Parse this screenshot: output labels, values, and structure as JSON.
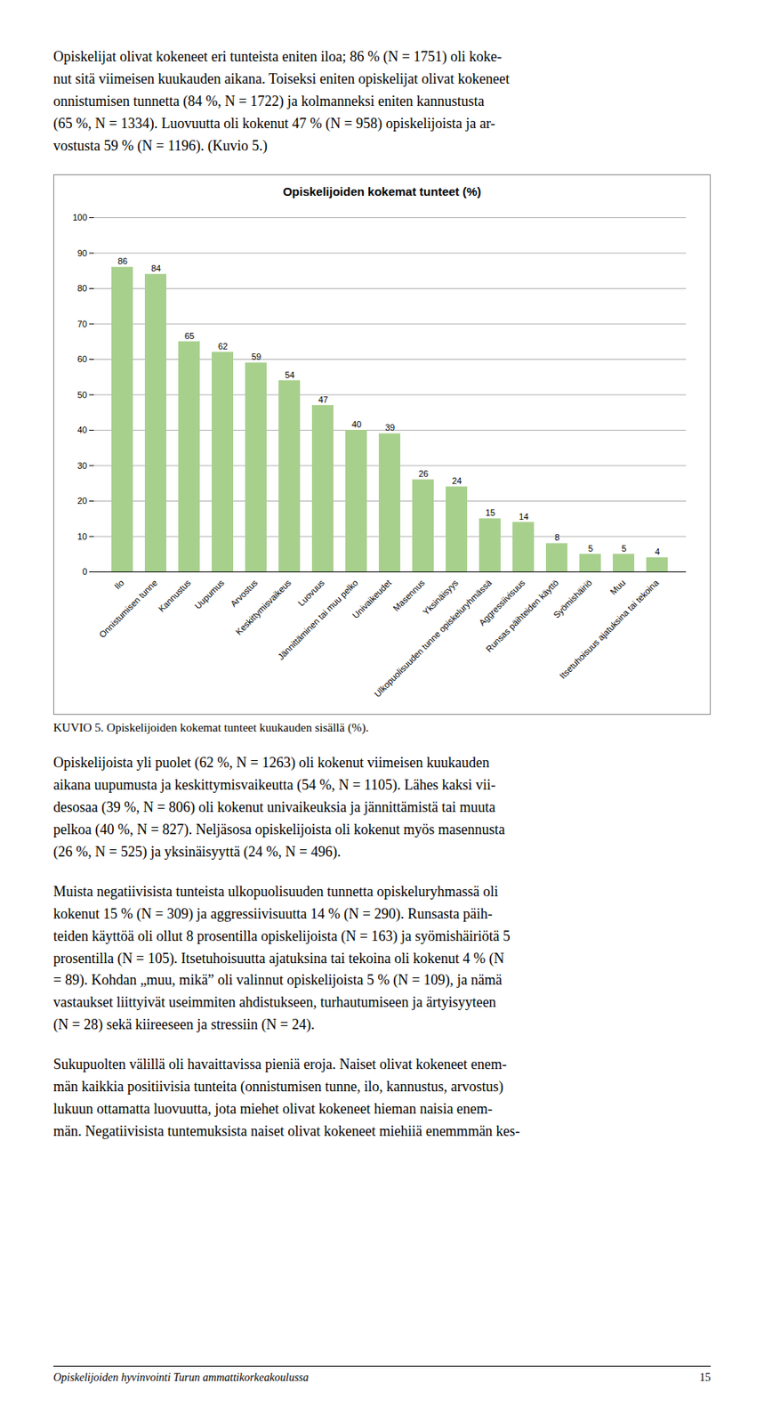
{
  "chart_data": {
    "type": "bar",
    "title": "Opiskelijoiden kokemat tunteet (%)",
    "categories": [
      "Ilo",
      "Onnistumisen tunne",
      "Kannustus",
      "Uupumus",
      "Arvostus",
      "Keskittymisvaikeus",
      "Luovuus",
      "Jännittäminen tai muu pelko",
      "Univaikeudet",
      "Masennus",
      "Yksinäisyys",
      "Ulkopuolisuuden tunne opiskeluryhmässä",
      "Aggressiivisuus",
      "Runsas päihteiden käyttö",
      "Syömishäiriö",
      "Muu",
      "Itsetuhoisuus ajatuksina tai tekoina"
    ],
    "values": [
      86,
      84,
      65,
      62,
      59,
      54,
      47,
      40,
      39,
      26,
      24,
      15,
      14,
      8,
      5,
      5,
      4
    ],
    "color": "#a8d08d",
    "ylim": [
      0,
      100
    ],
    "yticks": [
      0,
      10,
      20,
      30,
      40,
      50,
      60,
      70,
      80,
      90,
      100
    ],
    "grid": true,
    "data_labels": true
  },
  "text_above": [
    "Opiskelijat olivat kokeneet eri tunteista eniten iloa; 86 % (N = 1751) oli koke-\nnut sitä viimeisen kuukauden aikana. Toiseksi eniten opiskelijat olivat kokeneet\nonnistumisen tunnetta (84 %, N = 1722) ja kolmanneksi eniten kannustusta\n(65 %, N = 1334). Luovuutta oli kokenut 47 % (N = 958) opiskelijoista ja ar-\nvostusta 59 % (N = 1196). (Kuvio 5.)"
  ],
  "caption": "KUVIO 5. Opiskelijoiden kokemat tunteet kuukauden sisällä (%).",
  "text_below": [
    "Opiskelijoista yli puolet (62 %, N = 1263) oli kokenut viimeisen kuukauden\naikana uupumusta ja keskittymisvaikeutta (54 %, N = 1105). Lähes kaksi vii-\ndesosaa (39 %, N = 806) oli kokenut univaikeuksia ja jännittämistä tai muuta\npelkoa (40 %, N = 827). Neljäsosa opiskelijoista oli kokenut myös masennusta\n(26 %, N = 525) ja yksinäisyyttä (24 %, N = 496).",
    "Muista negatiivisista tunteista ulkopuolisuuden tunnetta opiskeluryhmassä oli\nkokenut 15 % (N = 309) ja aggressiivisuutta 14 % (N = 290). Runsasta päih-\nteiden käyttöä oli ollut 8 prosentilla opiskelijoista (N = 163) ja syömishäiriötä 5\nprosentilla (N = 105). Itsetuhoisuutta ajatuksina tai tekoina oli kokenut 4 % (N\n= 89). Kohdan „muu, mikä” oli valinnut opiskelijoista 5 % (N = 109), ja nämä\nvastaukset liittyivät useimmiten ahdistukseen, turhautumiseen ja ärtyisyyteen\n(N = 28) sekä kiireeseen ja stressiin (N = 24).",
    "Sukupuolten välillä oli havaittavissa pieniä eroja. Naiset olivat kokeneet enem-\nmän kaikkia positiivisia tunteita (onnistumisen tunne, ilo, kannustus, arvostus)\nlukuun ottamatta luovuutta, jota miehet olivat kokeneet hieman naisia enem-\nmän. Negatiivisista tuntemuksista naiset olivat kokeneet miehiiä enemmmän kes-"
  ],
  "footer": "Opiskelijoiden hyvinvointi Turun ammattikorkeakoulussa",
  "page_number": "15"
}
